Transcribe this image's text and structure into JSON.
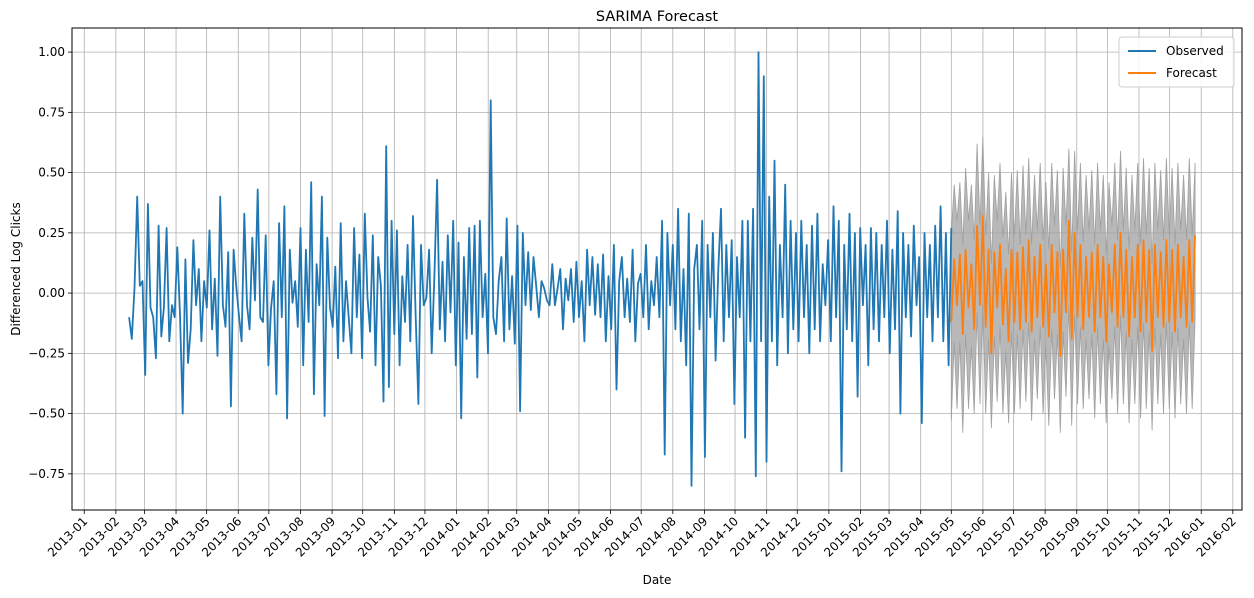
{
  "chart_data": {
    "type": "line",
    "title": "SARIMA Forecast",
    "xlabel": "Date",
    "ylabel": "Differenced Log Clicks",
    "xlim": [
      "2012-12-20",
      "2016-02-10"
    ],
    "ylim": [
      -0.9,
      1.1
    ],
    "grid": true,
    "legend_position": "top-right",
    "x_tick_labels": [
      "2013-01",
      "2013-02",
      "2013-03",
      "2013-04",
      "2013-05",
      "2013-06",
      "2013-07",
      "2013-08",
      "2013-09",
      "2013-10",
      "2013-11",
      "2013-12",
      "2014-01",
      "2014-02",
      "2014-03",
      "2014-04",
      "2014-05",
      "2014-06",
      "2014-07",
      "2014-08",
      "2014-09",
      "2014-10",
      "2014-11",
      "2014-12",
      "2015-01",
      "2015-02",
      "2015-03",
      "2015-04",
      "2015-05",
      "2015-06",
      "2015-07",
      "2015-08",
      "2015-09",
      "2015-10",
      "2015-11",
      "2015-12",
      "2016-01",
      "2016-02"
    ],
    "y_ticks": [
      -0.75,
      -0.5,
      -0.25,
      0.0,
      0.25,
      0.5,
      0.75,
      1.0
    ],
    "y_tick_labels": [
      "−0.75",
      "−0.50",
      "−0.25",
      "0.00",
      "0.25",
      "0.50",
      "0.75",
      "1.00"
    ],
    "series": [
      {
        "name": "Observed",
        "color": "#1f77b4",
        "x_start": "2013-02-14",
        "x_end": "2015-05-01",
        "values": [
          -0.1,
          -0.19,
          0.02,
          0.4,
          0.03,
          0.05,
          -0.34,
          0.37,
          -0.06,
          -0.1,
          -0.27,
          0.28,
          -0.18,
          -0.06,
          0.27,
          -0.2,
          -0.05,
          -0.1,
          0.19,
          -0.09,
          -0.5,
          0.14,
          -0.29,
          -0.15,
          0.22,
          -0.05,
          0.1,
          -0.2,
          0.05,
          -0.06,
          0.26,
          -0.15,
          0.06,
          -0.26,
          0.4,
          -0.05,
          -0.14,
          0.17,
          -0.47,
          0.18,
          0.03,
          -0.09,
          -0.2,
          0.33,
          -0.05,
          -0.15,
          0.23,
          -0.03,
          0.43,
          -0.1,
          -0.12,
          0.24,
          -0.3,
          -0.06,
          0.05,
          -0.42,
          0.29,
          -0.1,
          0.36,
          -0.52,
          0.18,
          -0.04,
          0.05,
          -0.14,
          0.27,
          -0.3,
          0.18,
          -0.12,
          0.46,
          -0.42,
          0.12,
          -0.05,
          0.4,
          -0.51,
          0.23,
          -0.06,
          -0.14,
          0.11,
          -0.27,
          0.29,
          -0.2,
          0.05,
          -0.1,
          -0.25,
          0.27,
          -0.1,
          0.16,
          -0.27,
          0.33,
          -0.02,
          -0.16,
          0.24,
          -0.3,
          0.15,
          0.03,
          -0.45,
          0.61,
          -0.39,
          0.3,
          -0.17,
          0.26,
          -0.3,
          0.07,
          -0.12,
          0.2,
          -0.2,
          0.32,
          -0.1,
          -0.46,
          0.2,
          -0.05,
          -0.02,
          0.18,
          -0.25,
          0.07,
          0.47,
          -0.15,
          0.13,
          -0.2,
          0.24,
          -0.08,
          0.3,
          -0.3,
          0.21,
          -0.52,
          0.15,
          -0.19,
          0.27,
          -0.17,
          0.28,
          -0.35,
          0.3,
          -0.1,
          0.08,
          -0.25,
          0.8,
          -0.1,
          -0.17,
          0.05,
          0.15,
          -0.2,
          0.31,
          -0.15,
          0.07,
          -0.21,
          0.28,
          -0.49,
          0.25,
          -0.05,
          0.17,
          -0.07,
          0.15,
          0.03,
          -0.1,
          0.05,
          0.02,
          -0.03,
          -0.05,
          0.12,
          -0.05,
          0.02,
          0.1,
          -0.15,
          0.06,
          -0.03,
          0.1,
          -0.12,
          0.13,
          -0.1,
          0.05,
          -0.2,
          0.18,
          -0.05,
          0.15,
          -0.09,
          0.12,
          -0.1,
          0.16,
          -0.2,
          0.07,
          -0.15,
          0.2,
          -0.4,
          0.05,
          0.15,
          -0.1,
          0.06,
          -0.12,
          0.18,
          -0.2,
          0.04,
          0.08,
          -0.1,
          0.2,
          -0.15,
          0.05,
          -0.05,
          0.15,
          -0.1,
          0.3,
          -0.67,
          0.25,
          -0.05,
          0.2,
          -0.15,
          0.35,
          -0.2,
          0.1,
          -0.3,
          0.33,
          -0.8,
          0.1,
          0.2,
          -0.15,
          0.3,
          -0.68,
          0.2,
          -0.1,
          0.25,
          -0.28,
          0.1,
          0.35,
          -0.2,
          0.2,
          -0.1,
          0.22,
          -0.46,
          0.15,
          -0.1,
          0.3,
          -0.6,
          0.3,
          -0.2,
          0.35,
          -0.76,
          1.0,
          -0.2,
          0.9,
          -0.7,
          0.4,
          -0.2,
          0.55,
          -0.3,
          0.2,
          -0.1,
          0.45,
          -0.25,
          0.3,
          -0.15,
          0.25,
          -0.2,
          0.3,
          -0.1,
          0.2,
          -0.25,
          0.28,
          -0.15,
          0.33,
          -0.2,
          0.12,
          -0.05,
          0.22,
          -0.2,
          0.36,
          -0.1,
          0.3,
          -0.74,
          0.2,
          -0.15,
          0.33,
          -0.2,
          0.25,
          -0.43,
          0.27,
          -0.05,
          0.2,
          -0.3,
          0.27,
          -0.15,
          0.25,
          -0.2,
          0.2,
          -0.1,
          0.3,
          -0.25,
          0.18,
          -0.15,
          0.34,
          -0.5,
          0.25,
          -0.1,
          0.2,
          -0.18,
          0.28,
          -0.05,
          0.15,
          -0.54,
          0.25,
          -0.1,
          0.2,
          -0.2,
          0.28,
          -0.1,
          0.36,
          -0.2,
          0.25,
          -0.3,
          0.27
        ]
      },
      {
        "name": "Forecast",
        "color": "#ff7f0e",
        "x_start": "2015-05-01",
        "x_end": "2015-12-26",
        "values": [
          -0.12,
          0.14,
          -0.05,
          0.16,
          -0.17,
          0.18,
          -0.06,
          0.12,
          -0.15,
          0.28,
          -0.05,
          0.32,
          -0.14,
          0.18,
          -0.25,
          0.17,
          -0.06,
          0.2,
          -0.13,
          0.1,
          -0.2,
          0.18,
          -0.12,
          0.17,
          -0.15,
          0.19,
          -0.12,
          0.22,
          -0.16,
          0.15,
          -0.1,
          0.2,
          -0.14,
          0.12,
          -0.18,
          0.2,
          -0.08,
          0.17,
          -0.26,
          0.18,
          -0.08,
          0.3,
          -0.19,
          0.25,
          -0.1,
          0.2,
          -0.15,
          0.15,
          -0.1,
          0.17,
          -0.16,
          0.2,
          -0.1,
          0.15,
          -0.2,
          0.12,
          -0.08,
          0.2,
          -0.14,
          0.25,
          -0.1,
          0.18,
          -0.18,
          0.15,
          -0.1,
          0.2,
          -0.16,
          0.22,
          -0.12,
          0.18,
          -0.24,
          0.2,
          -0.1,
          0.17,
          -0.14,
          0.22,
          -0.12,
          0.18,
          -0.16,
          0.2,
          -0.1,
          0.15,
          -0.14,
          0.22,
          -0.12,
          0.24
        ]
      }
    ],
    "confidence_band": {
      "color": "#a0a0a0",
      "x_start": "2015-05-01",
      "x_end": "2015-12-26",
      "lower": [
        -0.53,
        -0.2,
        -0.48,
        -0.2,
        -0.58,
        -0.17,
        -0.48,
        -0.22,
        -0.5,
        -0.08,
        -0.46,
        -0.04,
        -0.5,
        -0.19,
        -0.56,
        -0.18,
        -0.45,
        -0.14,
        -0.5,
        -0.24,
        -0.54,
        -0.16,
        -0.5,
        -0.17,
        -0.48,
        -0.15,
        -0.45,
        -0.12,
        -0.53,
        -0.19,
        -0.44,
        -0.14,
        -0.5,
        -0.22,
        -0.55,
        -0.15,
        -0.44,
        -0.17,
        -0.58,
        -0.16,
        -0.43,
        -0.05,
        -0.55,
        -0.09,
        -0.46,
        -0.14,
        -0.48,
        -0.19,
        -0.44,
        -0.17,
        -0.52,
        -0.14,
        -0.46,
        -0.19,
        -0.54,
        -0.22,
        -0.44,
        -0.14,
        -0.5,
        -0.09,
        -0.46,
        -0.16,
        -0.54,
        -0.19,
        -0.46,
        -0.14,
        -0.52,
        -0.12,
        -0.48,
        -0.16,
        -0.57,
        -0.14,
        -0.46,
        -0.17,
        -0.5,
        -0.12,
        -0.48,
        -0.16,
        -0.52,
        -0.14,
        -0.46,
        -0.19,
        -0.5,
        -0.12,
        -0.48,
        -0.1
      ],
      "upper": [
        0.25,
        0.45,
        0.3,
        0.46,
        0.2,
        0.52,
        0.3,
        0.45,
        0.22,
        0.62,
        0.28,
        0.65,
        0.24,
        0.5,
        0.12,
        0.49,
        0.3,
        0.54,
        0.23,
        0.42,
        0.16,
        0.5,
        0.24,
        0.51,
        0.2,
        0.53,
        0.24,
        0.56,
        0.2,
        0.49,
        0.26,
        0.54,
        0.22,
        0.46,
        0.18,
        0.54,
        0.28,
        0.51,
        0.1,
        0.52,
        0.28,
        0.6,
        0.17,
        0.59,
        0.26,
        0.54,
        0.21,
        0.49,
        0.26,
        0.51,
        0.2,
        0.54,
        0.26,
        0.49,
        0.16,
        0.46,
        0.28,
        0.54,
        0.22,
        0.59,
        0.26,
        0.52,
        0.18,
        0.49,
        0.26,
        0.54,
        0.2,
        0.56,
        0.24,
        0.52,
        0.12,
        0.54,
        0.26,
        0.51,
        0.22,
        0.56,
        0.24,
        0.52,
        0.2,
        0.54,
        0.26,
        0.49,
        0.22,
        0.56,
        0.24,
        0.54
      ]
    }
  }
}
